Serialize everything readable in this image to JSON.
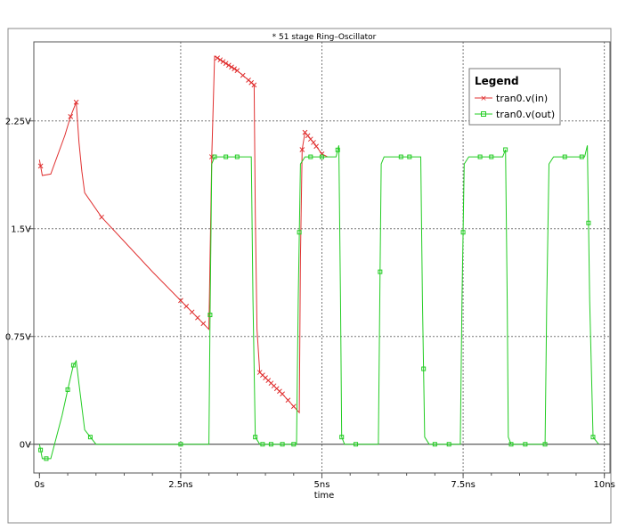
{
  "chart_data": {
    "type": "line",
    "title": "* 51 stage Ring–Oscillator",
    "xlabel": "time",
    "ylabel": "",
    "xlim": [
      -0.1,
      10.1
    ],
    "ylim": [
      -0.2,
      2.8
    ],
    "x_ticks": [
      {
        "value": 0,
        "label": "0s"
      },
      {
        "value": 2.5,
        "label": "2.5ns"
      },
      {
        "value": 5,
        "label": "5ns"
      },
      {
        "value": 7.5,
        "label": "7.5ns"
      },
      {
        "value": 10,
        "label": "10ns"
      }
    ],
    "y_ticks": [
      {
        "value": 0,
        "label": "0V"
      },
      {
        "value": 0.75,
        "label": "0.75V"
      },
      {
        "value": 1.5,
        "label": "1.5V"
      },
      {
        "value": 2.25,
        "label": "2.25V"
      }
    ],
    "grid": true,
    "legend": {
      "title": "Legend",
      "position": "top-right"
    },
    "series": [
      {
        "name": "tran0.v(in)",
        "color": "#e03030",
        "marker": "x",
        "x": [
          0,
          0.05,
          0.2,
          0.45,
          0.55,
          0.65,
          0.7,
          0.75,
          0.8,
          1.1,
          2.0,
          2.5,
          3.0,
          3.02,
          3.05,
          3.1,
          3.5,
          3.8,
          3.82,
          3.85,
          3.9,
          4.3,
          4.6,
          4.62,
          4.65,
          4.7,
          4.85,
          5.0,
          5.1
        ],
        "y": [
          1.98,
          1.87,
          1.88,
          2.15,
          2.28,
          2.38,
          2.1,
          1.9,
          1.75,
          1.58,
          1.2,
          1.0,
          0.8,
          1.3,
          2.0,
          2.7,
          2.6,
          2.5,
          1.6,
          0.8,
          0.5,
          0.35,
          0.22,
          1.3,
          2.05,
          2.17,
          2.1,
          2.02,
          2.0
        ],
        "marker_x": [
          0.02,
          0.55,
          0.65,
          1.1,
          2.5,
          2.6,
          2.7,
          2.8,
          2.9,
          3.05,
          3.15,
          3.2,
          3.25,
          3.3,
          3.35,
          3.4,
          3.45,
          3.5,
          3.6,
          3.7,
          3.75,
          3.8,
          3.9,
          3.95,
          4.0,
          4.05,
          4.1,
          4.15,
          4.2,
          4.25,
          4.3,
          4.4,
          4.5,
          4.65,
          4.7,
          4.75,
          4.8,
          4.85,
          4.9,
          5.0
        ]
      },
      {
        "name": "tran0.v(out)",
        "color": "#22cc22",
        "marker": "square",
        "x": [
          0,
          0.05,
          0.2,
          0.4,
          0.5,
          0.6,
          0.65,
          0.7,
          0.8,
          1.0,
          3.0,
          3.02,
          3.05,
          3.1,
          3.75,
          3.78,
          3.82,
          3.9,
          4.55,
          4.58,
          4.62,
          4.7,
          5.25,
          5.3,
          5.33,
          5.35,
          5.4,
          6.0,
          6.03,
          6.05,
          6.1,
          6.75,
          6.78,
          6.82,
          6.9,
          7.45,
          7.48,
          7.52,
          7.6,
          8.2,
          8.25,
          8.28,
          8.3,
          8.35,
          8.95,
          8.98,
          9.02,
          9.1,
          9.65,
          9.7,
          9.74,
          9.8,
          9.9
        ],
        "y": [
          0.0,
          -0.1,
          -0.1,
          0.2,
          0.38,
          0.55,
          0.58,
          0.42,
          0.1,
          0.0,
          0.0,
          0.9,
          1.95,
          2.0,
          2.0,
          1.0,
          0.05,
          0.0,
          0.0,
          1.0,
          1.95,
          2.0,
          2.0,
          2.08,
          1.0,
          0.05,
          0.0,
          0.0,
          1.2,
          1.95,
          2.0,
          2.0,
          1.0,
          0.05,
          0.0,
          0.0,
          1.0,
          1.95,
          2.0,
          2.0,
          2.05,
          1.0,
          0.05,
          0.0,
          0.0,
          1.0,
          1.95,
          2.0,
          2.0,
          2.08,
          1.0,
          0.05,
          0.0
        ],
        "marker_x": [
          0.02,
          0.12,
          0.5,
          0.6,
          0.9,
          2.5,
          3.02,
          3.1,
          3.3,
          3.5,
          3.82,
          3.95,
          4.1,
          4.3,
          4.5,
          4.6,
          4.8,
          5.0,
          5.28,
          5.35,
          5.6,
          6.03,
          6.4,
          6.55,
          6.8,
          7.0,
          7.25,
          7.5,
          7.8,
          8.0,
          8.25,
          8.35,
          8.6,
          8.95,
          9.3,
          9.6,
          9.72,
          9.8
        ]
      }
    ]
  }
}
